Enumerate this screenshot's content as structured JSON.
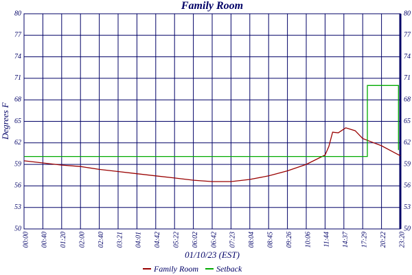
{
  "chart_data": {
    "type": "line",
    "title": "Family Room",
    "ylabel": "Degrees F",
    "xlabel": "01/10/23 (EST)",
    "xlim": [
      0,
      20
    ],
    "xticks": [
      {
        "value": 0,
        "label": "00:00"
      },
      {
        "value": 1,
        "label": "00:40"
      },
      {
        "value": 2,
        "label": "01:20"
      },
      {
        "value": 3,
        "label": "02:00"
      },
      {
        "value": 4,
        "label": "02:40"
      },
      {
        "value": 5,
        "label": "03:21"
      },
      {
        "value": 6,
        "label": "04:01"
      },
      {
        "value": 7,
        "label": "04:42"
      },
      {
        "value": 8,
        "label": "05:22"
      },
      {
        "value": 9,
        "label": "06:02"
      },
      {
        "value": 10,
        "label": "06:42"
      },
      {
        "value": 11,
        "label": "07:23"
      },
      {
        "value": 12,
        "label": "08:04"
      },
      {
        "value": 13,
        "label": "08:45"
      },
      {
        "value": 14,
        "label": "09:26"
      },
      {
        "value": 15,
        "label": "10:06"
      },
      {
        "value": 16,
        "label": "11:44"
      },
      {
        "value": 17,
        "label": "14:37"
      },
      {
        "value": 18,
        "label": "17:29"
      },
      {
        "value": 19,
        "label": "20:22"
      },
      {
        "value": 20,
        "label": "23:20"
      }
    ],
    "ylim": [
      50,
      80
    ],
    "yticks": [
      50,
      53,
      56,
      59,
      62,
      65,
      68,
      71,
      74,
      77,
      80
    ],
    "grid": true,
    "legend": "bottom",
    "series": [
      {
        "name": "Family Room",
        "color": "#990000",
        "x": [
          0,
          1,
          2,
          3,
          4,
          5,
          6,
          7,
          8,
          9,
          10,
          11,
          12,
          13,
          14,
          15,
          16,
          16.2,
          16.4,
          16.7,
          17.1,
          17.6,
          18.0,
          18.5,
          19.0,
          19.5,
          20
        ],
        "values": [
          59.5,
          59.2,
          58.9,
          58.7,
          58.3,
          58.0,
          57.7,
          57.4,
          57.1,
          56.8,
          56.6,
          56.6,
          56.9,
          57.4,
          58.1,
          59.0,
          60.3,
          61.5,
          63.5,
          63.4,
          64.1,
          63.7,
          62.6,
          62.1,
          61.6,
          60.9,
          60.2
        ]
      },
      {
        "name": "Setback",
        "color": "#00aa00",
        "x": [
          0,
          18.25,
          18.25,
          19.9,
          19.9
        ],
        "values": [
          60.1,
          60.1,
          70,
          70,
          61
        ]
      }
    ]
  }
}
